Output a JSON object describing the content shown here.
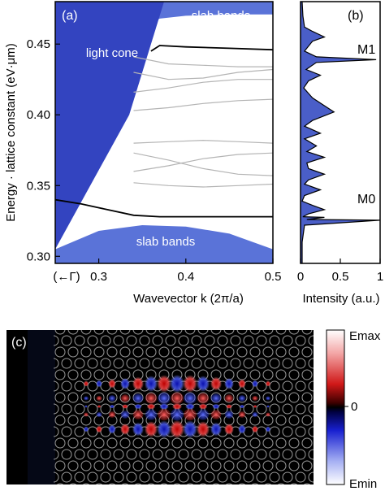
{
  "panel_a": {
    "label": "(a)",
    "ylabel": "Energy · lattice constant (eV·μm)",
    "xlabel": "Wavevector k (2π/a)",
    "x_left_label": "(←Γ)",
    "annotations": {
      "light_cone": "light cone",
      "slab_bands_top": "slab bands",
      "slab_bands_bottom": "slab bands"
    }
  },
  "panel_b": {
    "label": "(b)",
    "xlabel": "Intensity (a.u.)",
    "mode_top": "M1",
    "mode_bottom": "M0"
  },
  "panel_c": {
    "label": "(c)",
    "colorbar_max": "Emax",
    "colorbar_zero": "0",
    "colorbar_min": "Emin"
  },
  "colors": {
    "light_cone": "#3344c0",
    "slab_bands": "#5a73d8",
    "guided_band": "#000000",
    "other_bands": "#b4b4b4",
    "spectrum_fill": "#4a5ec8",
    "field_positive": "#d02020",
    "field_negative": "#2030d0"
  },
  "chart_data": [
    {
      "type": "line",
      "panel": "a",
      "xlabel": "Wavevector k (2π/a)",
      "ylabel": "Energy · lattice constant (eV·μm)",
      "xlim": [
        0.25,
        0.5
      ],
      "ylim": [
        0.295,
        0.48
      ],
      "xticks": [
        0.3,
        0.4,
        0.5
      ],
      "yticks": [
        0.3,
        0.35,
        0.4,
        0.45
      ],
      "light_cone_boundary": {
        "x": [
          0.25,
          0.335,
          0.375
        ],
        "y": [
          0.305,
          0.4,
          0.48
        ]
      },
      "slab_bands_top_lower_edge": {
        "x": [
          0.355,
          0.37,
          0.4,
          0.45,
          0.5
        ],
        "y": [
          0.463,
          0.468,
          0.47,
          0.471,
          0.471
        ]
      },
      "slab_bands_bottom_upper_edge": {
        "x": [
          0.25,
          0.3,
          0.35,
          0.4,
          0.45,
          0.5
        ],
        "y": [
          0.305,
          0.318,
          0.322,
          0.321,
          0.316,
          0.305
        ]
      },
      "series": [
        {
          "x": [
            0.36,
            0.37,
            0.4,
            0.45,
            0.5
          ],
          "y": [
            0.445,
            0.449,
            0.448,
            0.447,
            0.446
          ]
        },
        {
          "x": [
            0.25,
            0.28,
            0.31,
            0.34,
            0.37,
            0.4,
            0.45,
            0.5
          ],
          "y": [
            0.34,
            0.337,
            0.333,
            0.329,
            0.328,
            0.328,
            0.328,
            0.328
          ]
        }
      ],
      "other_bands": [
        {
          "x": [
            0.34,
            0.38,
            0.42,
            0.46,
            0.5
          ],
          "y": [
            0.441,
            0.436,
            0.435,
            0.434,
            0.434
          ]
        },
        {
          "x": [
            0.34,
            0.38,
            0.42,
            0.46,
            0.5
          ],
          "y": [
            0.43,
            0.425,
            0.426,
            0.43,
            0.432
          ]
        },
        {
          "x": [
            0.34,
            0.38,
            0.42,
            0.46,
            0.5
          ],
          "y": [
            0.416,
            0.419,
            0.423,
            0.425,
            0.425
          ]
        },
        {
          "x": [
            0.34,
            0.38,
            0.42,
            0.46,
            0.5
          ],
          "y": [
            0.403,
            0.405,
            0.408,
            0.41,
            0.411
          ]
        },
        {
          "x": [
            0.34,
            0.38,
            0.42,
            0.46,
            0.5
          ],
          "y": [
            0.38,
            0.381,
            0.382,
            0.381,
            0.38
          ]
        },
        {
          "x": [
            0.34,
            0.38,
            0.42,
            0.46,
            0.5
          ],
          "y": [
            0.36,
            0.364,
            0.369,
            0.372,
            0.373
          ]
        },
        {
          "x": [
            0.34,
            0.38,
            0.42,
            0.46,
            0.5
          ],
          "y": [
            0.373,
            0.368,
            0.362,
            0.358,
            0.357
          ]
        },
        {
          "x": [
            0.34,
            0.38,
            0.42,
            0.46,
            0.5
          ],
          "y": [
            0.352,
            0.35,
            0.349,
            0.35,
            0.351
          ]
        }
      ]
    },
    {
      "type": "area",
      "panel": "b",
      "xlabel": "Intensity (a.u.)",
      "xlim": [
        0,
        1
      ],
      "xticks": [
        0,
        0.5,
        1
      ],
      "ylim": [
        0.295,
        0.48
      ],
      "series": [
        {
          "x": [
            0.02,
            0.03,
            0.05,
            0.15,
            0.3,
            0.15,
            0.05,
            0.2,
            0.95,
            0.2,
            0.07,
            0.25,
            0.1,
            0.04,
            0.15,
            0.42,
            0.15,
            0.05,
            0.25,
            0.05,
            0.2,
            0.08,
            0.3,
            0.08,
            0.1,
            0.3,
            0.1,
            0.05,
            0.25,
            0.05,
            0.02,
            0.15,
            0.3,
            0.1,
            0.03,
            0.3,
            0.08,
            1.0,
            0.05,
            0.02,
            0.02
          ],
          "y": [
            0.48,
            0.47,
            0.462,
            0.459,
            0.455,
            0.452,
            0.445,
            0.441,
            0.439,
            0.437,
            0.432,
            0.428,
            0.424,
            0.419,
            0.412,
            0.402,
            0.396,
            0.392,
            0.387,
            0.383,
            0.378,
            0.374,
            0.37,
            0.366,
            0.362,
            0.358,
            0.354,
            0.351,
            0.347,
            0.343,
            0.339,
            0.336,
            0.333,
            0.33,
            0.328,
            0.3275,
            0.326,
            0.3255,
            0.322,
            0.31,
            0.295
          ]
        }
      ]
    }
  ]
}
